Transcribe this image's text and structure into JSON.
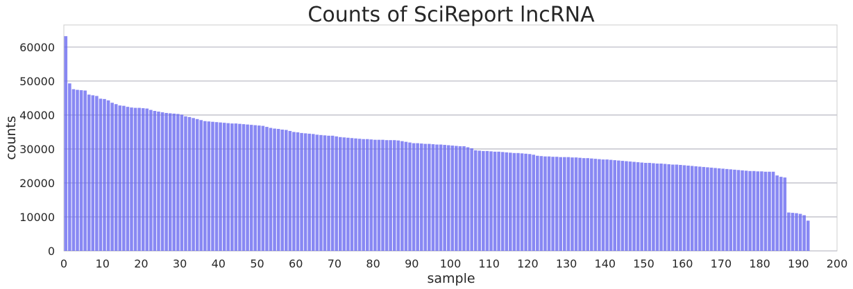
{
  "chart_data": {
    "type": "bar",
    "title": "Counts of SciReport lncRNA",
    "xlabel": "sample",
    "ylabel": "counts",
    "xlim": [
      0,
      200
    ],
    "ylim": [
      0,
      66500
    ],
    "x_ticks": [
      0,
      10,
      20,
      30,
      40,
      50,
      60,
      70,
      80,
      90,
      100,
      110,
      120,
      130,
      140,
      150,
      160,
      170,
      180,
      190,
      200
    ],
    "y_ticks": [
      0,
      10000,
      20000,
      30000,
      40000,
      50000,
      60000
    ],
    "grid": "horizontal",
    "bar_color": "#6a6af0",
    "values": [
      63200,
      49300,
      47600,
      47400,
      47300,
      47200,
      46000,
      45800,
      45600,
      44800,
      44700,
      44300,
      43600,
      43200,
      42800,
      42700,
      42400,
      42200,
      42100,
      42100,
      42000,
      41900,
      41500,
      41200,
      41000,
      40800,
      40600,
      40500,
      40400,
      40300,
      40100,
      39600,
      39400,
      39100,
      38800,
      38500,
      38200,
      38100,
      38000,
      37900,
      37800,
      37700,
      37600,
      37500,
      37500,
      37400,
      37300,
      37200,
      37100,
      37000,
      36900,
      36800,
      36500,
      36200,
      36000,
      35900,
      35700,
      35600,
      35300,
      35000,
      34900,
      34700,
      34600,
      34500,
      34400,
      34200,
      34100,
      34000,
      33900,
      33900,
      33700,
      33500,
      33400,
      33300,
      33200,
      33100,
      33000,
      32900,
      32900,
      32800,
      32700,
      32700,
      32700,
      32600,
      32600,
      32600,
      32500,
      32300,
      32100,
      31900,
      31700,
      31700,
      31600,
      31500,
      31500,
      31400,
      31300,
      31300,
      31200,
      31100,
      31000,
      30900,
      30800,
      30800,
      30500,
      30200,
      29600,
      29500,
      29400,
      29400,
      29300,
      29200,
      29200,
      29100,
      29000,
      28900,
      28800,
      28800,
      28700,
      28600,
      28500,
      28300,
      28000,
      27900,
      27800,
      27800,
      27700,
      27700,
      27600,
      27600,
      27600,
      27500,
      27500,
      27400,
      27300,
      27300,
      27200,
      27100,
      27000,
      26900,
      26900,
      26800,
      26700,
      26600,
      26500,
      26400,
      26300,
      26200,
      26100,
      26000,
      25900,
      25900,
      25800,
      25700,
      25700,
      25600,
      25500,
      25400,
      25400,
      25300,
      25200,
      25100,
      25000,
      24900,
      24800,
      24700,
      24600,
      24500,
      24400,
      24300,
      24200,
      24100,
      24000,
      23900,
      23800,
      23700,
      23600,
      23500,
      23500,
      23400,
      23400,
      23300,
      23300,
      23300,
      22200,
      21800,
      21600,
      11300,
      11200,
      11100,
      10900,
      10500,
      8900
    ]
  }
}
